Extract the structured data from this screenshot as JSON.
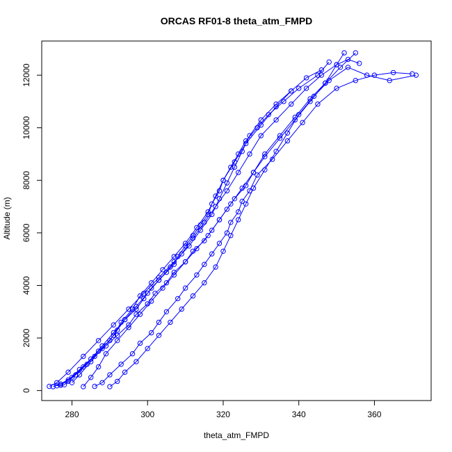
{
  "chart_data": {
    "type": "line",
    "title": "ORCAS RF01-8 theta_atm_FMPD",
    "xlabel": "theta_atm_FMPD",
    "ylabel": "Altitude (m)",
    "xlim": [
      272,
      375
    ],
    "ylim": [
      -380,
      13300
    ],
    "x_ticks": [
      280,
      300,
      320,
      340,
      360
    ],
    "y_ticks": [
      0,
      2000,
      4000,
      6000,
      8000,
      10000,
      12000
    ],
    "grid": false,
    "legend": "none",
    "color": "#0000ff",
    "marker": "open-circle",
    "series": [
      {
        "x": [
          276,
          278,
          279,
          281,
          284,
          287,
          290,
          292,
          294,
          297,
          299,
          301,
          303,
          305,
          307,
          308,
          310,
          312,
          314,
          316,
          317,
          319,
          320,
          322,
          324,
          326,
          329,
          332,
          336,
          340,
          345,
          348
        ],
        "y": [
          180,
          220,
          350,
          600,
          1000,
          1500,
          1900,
          2300,
          2700,
          3100,
          3500,
          3900,
          4200,
          4500,
          4800,
          5100,
          5500,
          5900,
          6300,
          6700,
          7100,
          7600,
          8000,
          8500,
          9000,
          9500,
          10000,
          10500,
          11000,
          11500,
          12000,
          12500
        ]
      },
      {
        "x": [
          275,
          277,
          280,
          283,
          286,
          289,
          292,
          295,
          297,
          300,
          302,
          305,
          307,
          310,
          312,
          315,
          317,
          319,
          321,
          323,
          326,
          328,
          331,
          335,
          339,
          343,
          347,
          350,
          352
        ],
        "y": [
          150,
          250,
          500,
          900,
          1300,
          1700,
          2100,
          2500,
          2900,
          3300,
          3700,
          4100,
          4500,
          4900,
          5300,
          5700,
          6100,
          6500,
          6900,
          7300,
          7800,
          8300,
          8900,
          9600,
          10300,
          11000,
          11700,
          12400,
          12850
        ]
      },
      {
        "x": [
          286,
          288,
          290,
          293,
          296,
          298,
          301,
          303,
          305,
          308,
          310,
          313,
          315,
          317,
          319,
          321,
          322,
          324,
          325,
          327,
          329,
          333,
          337,
          341,
          345,
          350,
          355,
          360,
          365,
          370
        ],
        "y": [
          160,
          300,
          600,
          1000,
          1400,
          1800,
          2200,
          2600,
          3000,
          3500,
          3900,
          4400,
          4800,
          5200,
          5600,
          6000,
          6400,
          6800,
          7200,
          7600,
          8200,
          8800,
          9500,
          10200,
          10900,
          11500,
          11800,
          12000,
          12100,
          12050
        ]
      },
      {
        "x": [
          277,
          279,
          282,
          285,
          288,
          291,
          294,
          297,
          300,
          303,
          306,
          309,
          312,
          315,
          318,
          321,
          324,
          327,
          330,
          334,
          338,
          342,
          346,
          350,
          353,
          356
        ],
        "y": [
          200,
          400,
          800,
          1200,
          1700,
          2200,
          2700,
          3200,
          3700,
          4200,
          4700,
          5200,
          5800,
          6400,
          7000,
          7600,
          8300,
          9000,
          9700,
          10300,
          10900,
          11500,
          12000,
          12400,
          12600,
          12450
        ]
      },
      {
        "x": [
          290,
          292,
          294,
          297,
          300,
          303,
          306,
          309,
          312,
          315,
          318,
          320,
          322,
          324,
          326,
          328,
          331,
          334,
          337,
          340,
          344,
          348,
          353,
          358,
          364,
          371
        ],
        "y": [
          150,
          350,
          700,
          1100,
          1600,
          2100,
          2600,
          3100,
          3600,
          4100,
          4700,
          5300,
          5900,
          6500,
          7100,
          7700,
          8400,
          9100,
          9800,
          10500,
          11200,
          11800,
          12300,
          12000,
          11800,
          12000
        ]
      },
      {
        "x": [
          280,
          282,
          285,
          288,
          291,
          293,
          296,
          298,
          301,
          304,
          307,
          310,
          313,
          316,
          318,
          320,
          323,
          326,
          330,
          334,
          338,
          342,
          346
        ],
        "y": [
          300,
          600,
          1100,
          1600,
          2100,
          2600,
          3100,
          3600,
          4100,
          4600,
          5100,
          5600,
          6200,
          6800,
          7400,
          8000,
          8700,
          9400,
          10100,
          10800,
          11400,
          11900,
          12200
        ]
      },
      {
        "x": [
          283,
          285,
          287,
          289,
          292,
          295,
          298,
          301,
          304,
          307,
          310,
          313,
          316,
          319,
          322,
          325,
          328,
          331,
          335,
          339,
          343,
          347,
          351,
          355
        ],
        "y": [
          150,
          500,
          900,
          1400,
          1900,
          2400,
          2900,
          3400,
          3900,
          4400,
          4900,
          5400,
          5900,
          6500,
          7100,
          7700,
          8300,
          9000,
          9700,
          10400,
          11100,
          11700,
          12300,
          12850
        ]
      },
      {
        "x": [
          274,
          276,
          279,
          283,
          287,
          291,
          295,
          299,
          303,
          307,
          311,
          314,
          317,
          319,
          321,
          323,
          325,
          327,
          330,
          334,
          338
        ],
        "y": [
          160,
          300,
          700,
          1300,
          1900,
          2500,
          3100,
          3700,
          4300,
          4900,
          5500,
          6100,
          6700,
          7300,
          7900,
          8500,
          9100,
          9700,
          10300,
          10900,
          11400
        ]
      }
    ]
  }
}
